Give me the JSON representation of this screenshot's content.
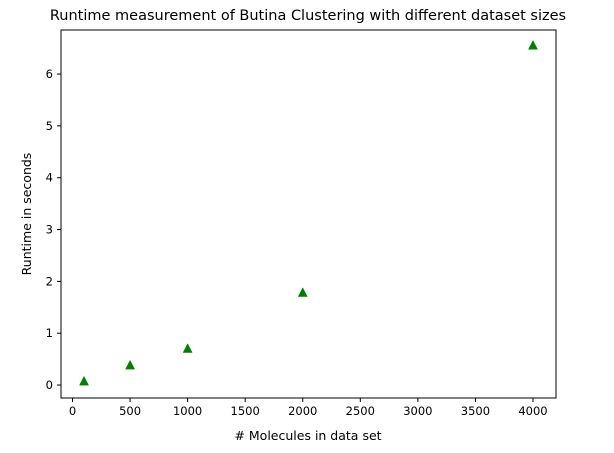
{
  "chart_data": {
    "type": "scatter",
    "title": "Runtime measurement of Butina Clustering with different dataset sizes",
    "xlabel": "# Molecules in data set",
    "ylabel": "Runtime in seconds",
    "xlim": [
      -100,
      4200
    ],
    "ylim": [
      -0.25,
      6.85
    ],
    "xticks": [
      0,
      500,
      1000,
      1500,
      2000,
      2500,
      3000,
      3500,
      4000
    ],
    "yticks": [
      0,
      1,
      2,
      3,
      4,
      5,
      6
    ],
    "marker": "triangle-up",
    "color": "#008000",
    "grid": false,
    "series": [
      {
        "x": [
          100,
          500,
          1000,
          2000,
          4000
        ],
        "y": [
          0.07,
          0.38,
          0.7,
          1.78,
          6.55
        ]
      }
    ]
  }
}
